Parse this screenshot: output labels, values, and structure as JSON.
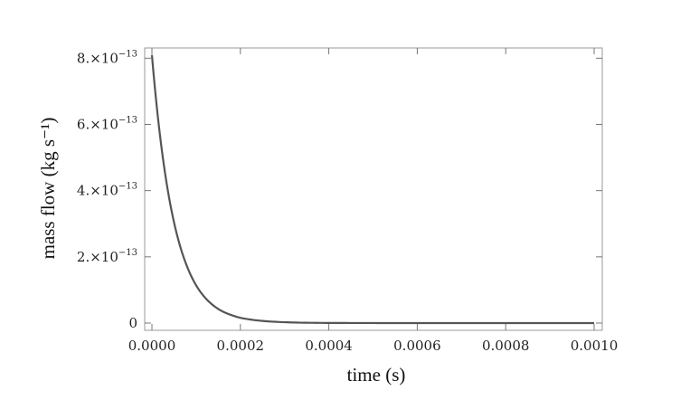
{
  "chart_data": {
    "type": "line",
    "xlabel": "time (s)",
    "ylabel": "mass flow (kg s⁻¹)",
    "xlim": [
      0,
      0.001
    ],
    "ylim": [
      0,
      8.2e-13
    ],
    "grid": false,
    "x_ticks": [
      {
        "value": 0,
        "label": "0.0000"
      },
      {
        "value": 0.0002,
        "label": "0.0002"
      },
      {
        "value": 0.0004,
        "label": "0.0004"
      },
      {
        "value": 0.0006,
        "label": "0.0006"
      },
      {
        "value": 0.0008,
        "label": "0.0008"
      },
      {
        "value": 0.001,
        "label": "0.0010"
      }
    ],
    "y_ticks": [
      {
        "value": 0,
        "mantissa": "0",
        "exponent": ""
      },
      {
        "value": 2e-13,
        "mantissa": "2.×10",
        "exponent": "−13"
      },
      {
        "value": 4e-13,
        "mantissa": "4.×10",
        "exponent": "−13"
      },
      {
        "value": 6e-13,
        "mantissa": "6.×10",
        "exponent": "−13"
      },
      {
        "value": 8e-13,
        "mantissa": "8.×10",
        "exponent": "−13"
      }
    ],
    "series": [
      {
        "color": "#555555",
        "x": [
          0,
          1e-05,
          2e-05,
          3e-05,
          4e-05,
          5e-05,
          6e-05,
          8e-05,
          0.0001,
          0.00012,
          0.00014,
          0.00016,
          0.00018,
          0.0002,
          0.00025,
          0.0003,
          0.00035,
          0.0004,
          0.0005,
          0.0006,
          0.0007,
          0.0008,
          0.0009,
          0.001
        ],
        "y": [
          8.1e-13,
          6.66e-13,
          5.48e-13,
          4.5e-13,
          3.7e-13,
          3.04e-13,
          2.5e-13,
          1.69e-13,
          1.14e-13,
          7.7e-14,
          5.2e-14,
          3.5e-14,
          2.4e-14,
          1.6e-14,
          6.5e-15,
          2.6e-15,
          1e-15,
          4e-16,
          1e-16,
          0,
          0,
          0,
          0,
          0
        ]
      }
    ]
  }
}
